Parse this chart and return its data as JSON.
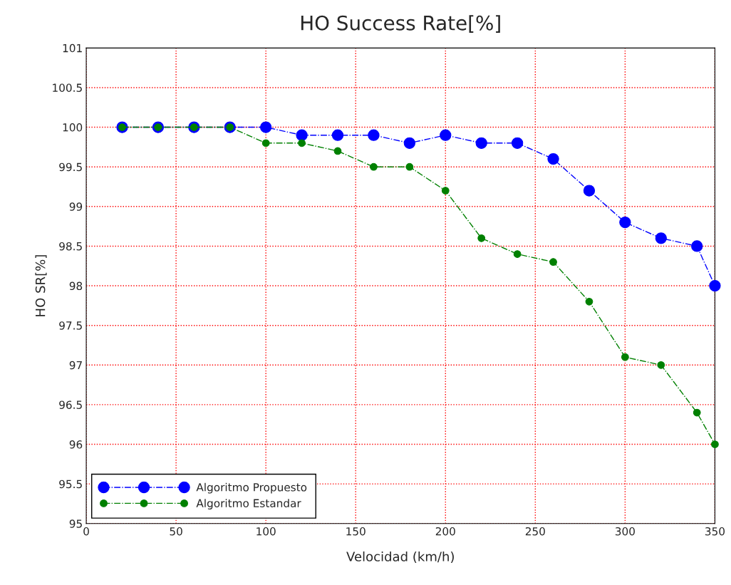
{
  "chart_data": {
    "type": "line",
    "title": "HO Success Rate[%]",
    "xlabel": "Velocidad (km/h)",
    "ylabel": "HO SR[%]",
    "x": [
      20,
      40,
      60,
      80,
      100,
      120,
      140,
      160,
      180,
      200,
      220,
      240,
      260,
      280,
      300,
      320,
      340,
      350
    ],
    "series": [
      {
        "name": "Algoritmo Propuesto",
        "color": "#0000ff",
        "values": [
          100,
          100,
          100,
          100,
          100,
          99.9,
          99.9,
          99.9,
          99.8,
          99.9,
          99.8,
          99.8,
          99.6,
          99.2,
          98.8,
          98.6,
          98.5,
          98.0
        ]
      },
      {
        "name": "Algoritmo Estandar",
        "color": "#008000",
        "values": [
          100,
          100,
          100,
          100,
          99.8,
          99.8,
          99.7,
          99.5,
          99.5,
          99.2,
          98.6,
          98.4,
          98.3,
          97.8,
          97.1,
          97.0,
          96.4,
          96.0
        ]
      }
    ],
    "xlim": [
      0,
      350
    ],
    "xticks": [
      0,
      50,
      100,
      150,
      200,
      250,
      300,
      350
    ],
    "ylim": [
      95,
      101
    ],
    "yticks": [
      95,
      95.5,
      96,
      96.5,
      97,
      97.5,
      98,
      98.5,
      99,
      99.5,
      100,
      100.5,
      101
    ],
    "grid": true,
    "legend": "bottom left",
    "marker": "circle",
    "line_style": "dashdot"
  }
}
